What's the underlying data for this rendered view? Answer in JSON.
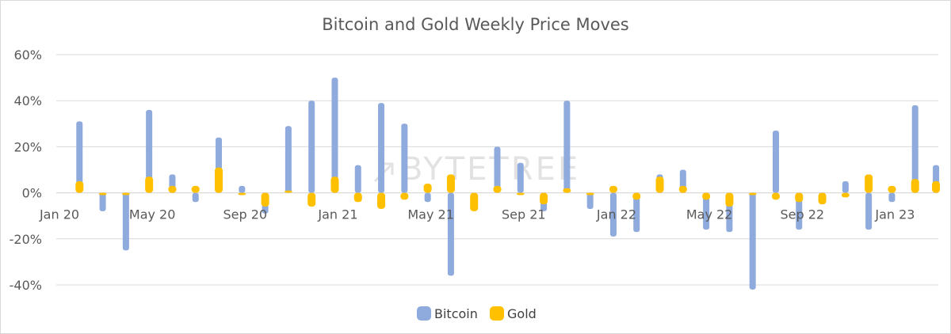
{
  "chart_data": {
    "type": "bar",
    "title": "Bitcoin and Gold Weekly Price Moves",
    "watermark": "BYTETREE",
    "x_tick_labels": [
      "Jan 20",
      "May 20",
      "Sep 20",
      "Jan 21",
      "May 21",
      "Sep 21",
      "Jan 22",
      "May 22",
      "Sep 22",
      "Jan 23"
    ],
    "y_tick_labels": [
      "60%",
      "40%",
      "20%",
      "0%",
      "-20%",
      "-40%"
    ],
    "y_ticks": [
      60,
      40,
      20,
      0,
      -20,
      -40
    ],
    "ylim": [
      -40,
      60
    ],
    "grid": true,
    "legend_position": "bottom",
    "legend": [
      "Bitcoin",
      "Gold"
    ],
    "colors": {
      "bitcoin": "#8faadc",
      "gold": "#ffc000",
      "grid": "#d9d9d9"
    },
    "x_range": [
      0,
      38
    ],
    "x_label_positions": [
      0,
      4,
      8,
      12,
      16,
      20,
      24,
      28,
      32,
      36
    ],
    "series": [
      {
        "name": "Bitcoin",
        "x": [
          1,
          2,
          3,
          4,
          5,
          6,
          7,
          8,
          9,
          10,
          11,
          12,
          13,
          14,
          15,
          16,
          17,
          18,
          19,
          20,
          21,
          22,
          23,
          24,
          25,
          26,
          27,
          28,
          29,
          30,
          31,
          32,
          33,
          34,
          35,
          36,
          37,
          37.9
        ],
        "values": [
          31,
          -8,
          -25,
          36,
          8,
          -4,
          24,
          3,
          -9,
          29,
          40,
          50,
          12,
          39,
          30,
          -4,
          -36,
          0,
          20,
          13,
          -8,
          40,
          -7,
          -19,
          -17,
          8,
          10,
          -16,
          -17,
          -42,
          27,
          -16,
          -5,
          5,
          -16,
          -4,
          38,
          12
        ]
      },
      {
        "name": "Gold",
        "x": [
          1,
          2,
          3,
          4,
          5,
          6,
          7,
          8,
          9,
          10,
          11,
          12,
          13,
          14,
          15,
          16,
          17,
          18,
          19,
          20,
          21,
          22,
          23,
          24,
          25,
          26,
          27,
          28,
          29,
          30,
          31,
          32,
          33,
          34,
          35,
          36,
          37,
          37.9
        ],
        "values": [
          5,
          -1,
          -1,
          7,
          3,
          3,
          11,
          -1,
          -6,
          1,
          -6,
          7,
          -4,
          -7,
          -3,
          4,
          8,
          -8,
          3,
          -1,
          -5,
          2,
          -1,
          3,
          -3,
          7,
          3,
          -3,
          -6,
          -1,
          -3,
          -4,
          -5,
          -2,
          8,
          3,
          6,
          5
        ]
      }
    ]
  }
}
